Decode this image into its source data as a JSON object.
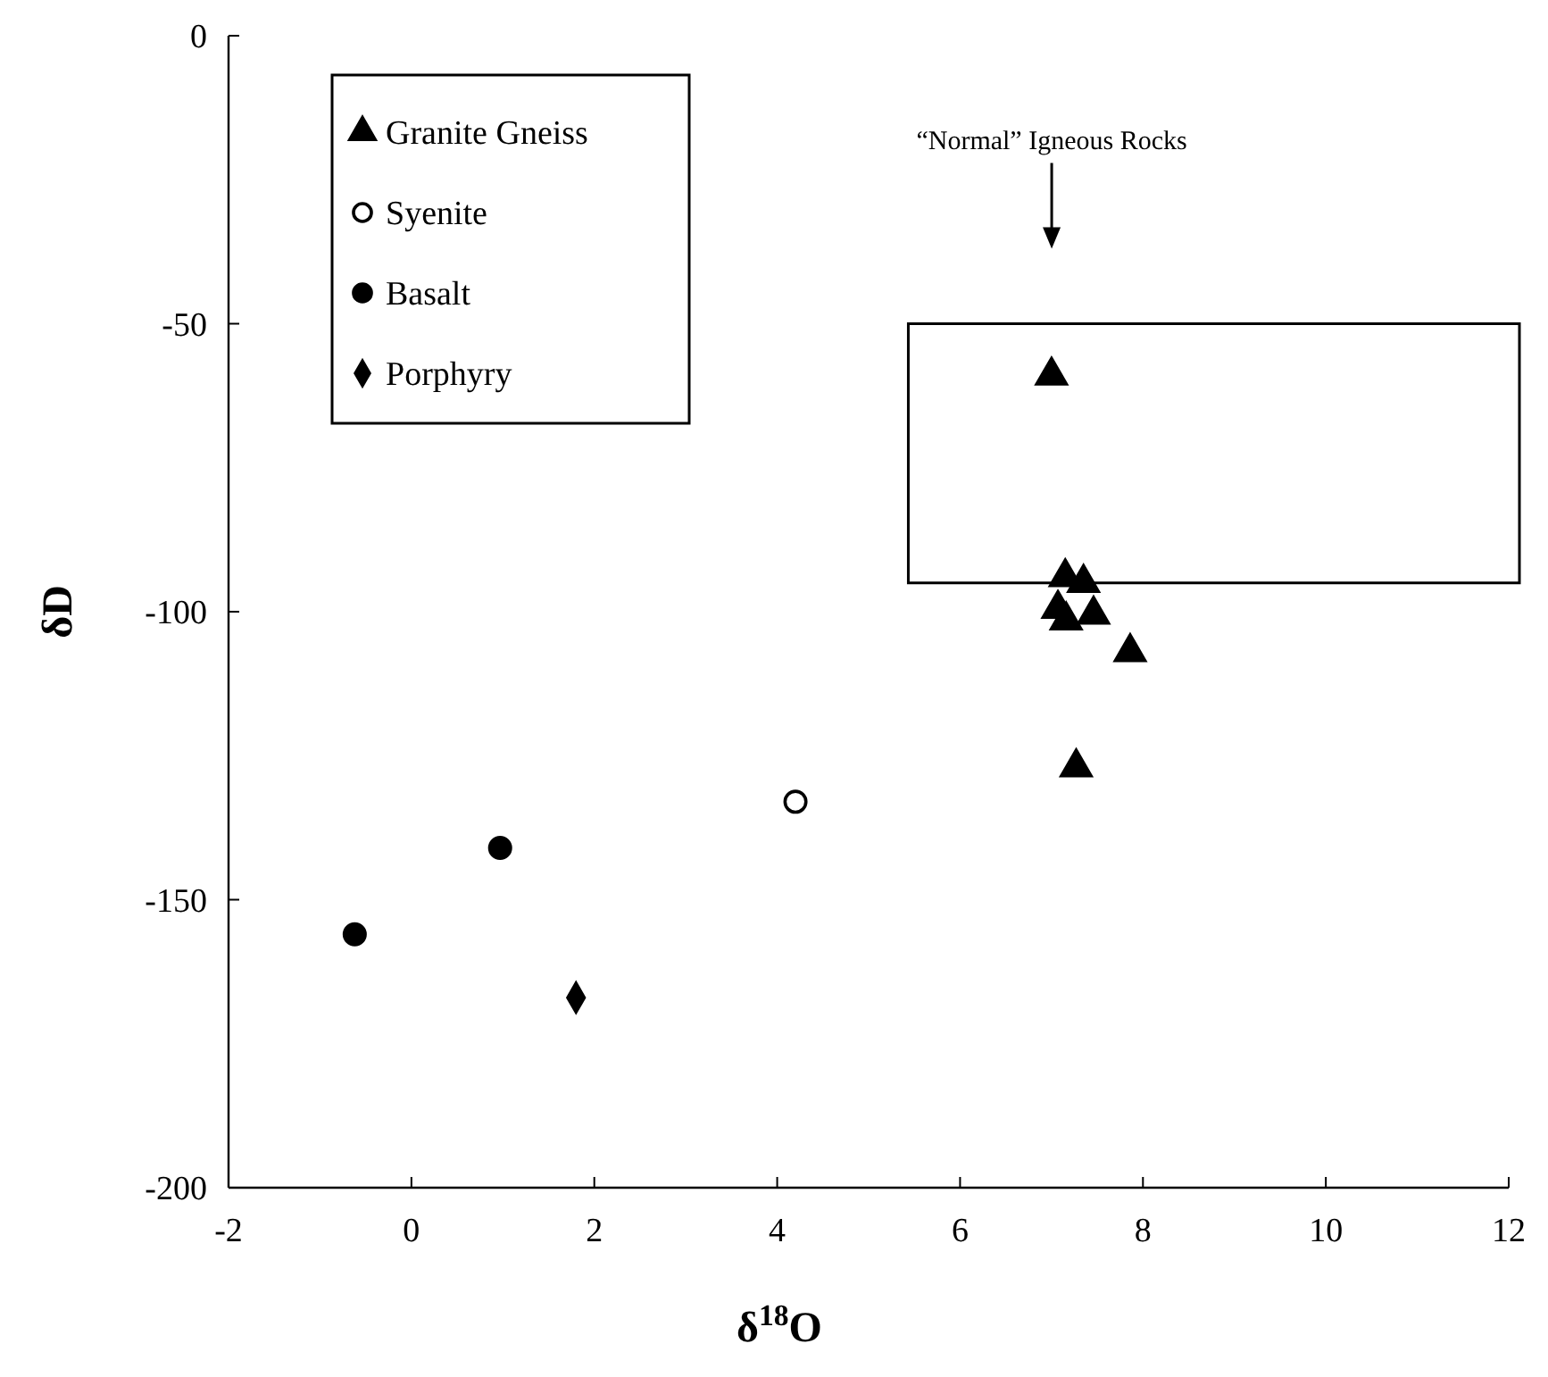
{
  "chart_data": {
    "type": "scatter",
    "xlabel": "δ$^{18}$O",
    "ylabel": "δD",
    "xlim": [
      -2,
      12
    ],
    "ylim": [
      -200,
      0
    ],
    "xticks": [
      -2,
      0,
      2,
      4,
      6,
      8,
      10,
      12
    ],
    "yticks": [
      -200,
      -150,
      -100,
      -50,
      0
    ],
    "grid": false,
    "legend": "top left",
    "series": [
      {
        "name": "Granite Gneiss",
        "marker": "triangle",
        "color": "#000000",
        "x": [
          7.0,
          7.15,
          7.35,
          7.07,
          7.16,
          7.46,
          7.86,
          7.27
        ],
        "values": [
          -59,
          -94,
          -95,
          -99.5,
          -101.5,
          -100.5,
          -107,
          -127
        ]
      },
      {
        "name": "Syenite",
        "marker": "circle",
        "color": "#ffffff",
        "x": [
          4.2
        ],
        "values": [
          -133
        ]
      },
      {
        "name": "Basalt",
        "marker": "circle",
        "color": "#000000",
        "x": [
          0.97,
          -0.62
        ],
        "values": [
          -141,
          -156
        ]
      },
      {
        "name": "Porphyry",
        "marker": "diamond",
        "color": "#000000",
        "x": [
          1.8
        ],
        "values": [
          -167
        ]
      }
    ],
    "bands": [
      {
        "axis": "y",
        "from": -95,
        "to": -50,
        "color": "#ffffff"
      }
    ],
    "annotations": [
      "“Normal” Igneous Rocks"
    ]
  }
}
